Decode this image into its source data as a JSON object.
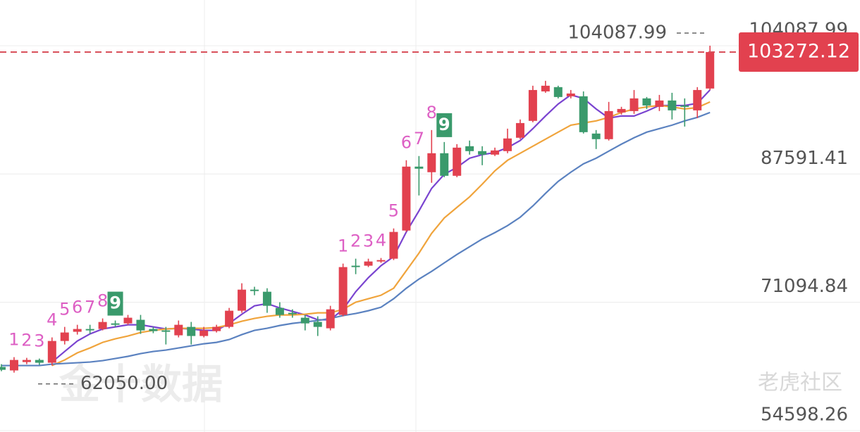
{
  "chart_data": {
    "type": "candlestick",
    "up_color": "#e2414f",
    "down_color": "#3a9a6c",
    "open": [
      62780,
      62330,
      63410,
      63680,
      63320,
      66120,
      67300,
      67660,
      67660,
      68380,
      68380,
      68840,
      67660,
      67480,
      66850,
      67930,
      66760,
      67390,
      67930,
      70010,
      72720,
      72450,
      70370,
      69740,
      69110,
      68570,
      67750,
      69470,
      75800,
      75800,
      76340,
      76700,
      80320,
      88540,
      87820,
      90260,
      87360,
      91160,
      90530,
      90080,
      90530,
      92250,
      94420,
      98210,
      98760,
      97580,
      97580,
      92790,
      92070,
      95500,
      95680,
      97310,
      96220,
      97040,
      96400,
      95770,
      98580
    ],
    "high": [
      63140,
      64040,
      63950,
      63860,
      66580,
      67930,
      68200,
      68200,
      69020,
      68750,
      69470,
      69470,
      67930,
      67930,
      68750,
      68570,
      67930,
      68200,
      70370,
      73540,
      73090,
      72900,
      71100,
      70190,
      69470,
      69290,
      70640,
      76070,
      76700,
      76700,
      76790,
      80590,
      89360,
      89900,
      93240,
      91700,
      91430,
      91890,
      91160,
      90980,
      93420,
      94600,
      98940,
      99570,
      98940,
      98390,
      98210,
      93240,
      96860,
      96230,
      98390,
      97490,
      97760,
      98030,
      97310,
      98760,
      104087.99
    ],
    "low": [
      62230,
      62050,
      63140,
      63050,
      62960,
      65670,
      66940,
      67030,
      67480,
      67930,
      68200,
      67030,
      67120,
      65670,
      66580,
      65670,
      66580,
      67210,
      67750,
      69740,
      72000,
      69740,
      69110,
      69110,
      67480,
      66760,
      67480,
      69290,
      74710,
      75620,
      76160,
      76520,
      80140,
      84830,
      86460,
      87180,
      87180,
      90080,
      88720,
      89900,
      90260,
      92070,
      94240,
      98030,
      97310,
      97310,
      92790,
      90800,
      91890,
      95230,
      95320,
      95950,
      95680,
      94600,
      93690,
      94780,
      98390
    ],
    "close": [
      62410,
      63680,
      63680,
      63320,
      66120,
      67210,
      67660,
      67480,
      68560,
      68200,
      69110,
      67480,
      67390,
      67300,
      68200,
      66760,
      67480,
      67930,
      70010,
      72720,
      72540,
      70640,
      69470,
      69560,
      68380,
      67930,
      70190,
      75620,
      75620,
      76340,
      76520,
      80140,
      88540,
      88270,
      90260,
      87360,
      90980,
      90530,
      90080,
      90620,
      92160,
      94140,
      98390,
      98940,
      97490,
      97940,
      92970,
      92070,
      95680,
      95950,
      97310,
      96400,
      97040,
      95770,
      96220,
      98390,
      103272.12
    ],
    "series": [
      {
        "color": "#7a44d0",
        "values": [
          null,
          null,
          null,
          null,
          63410,
          64770,
          66120,
          67030,
          67660,
          67930,
          68200,
          68200,
          67930,
          67660,
          67750,
          67660,
          67480,
          67480,
          68380,
          69560,
          70640,
          70920,
          70370,
          69920,
          69470,
          68840,
          68840,
          70190,
          72450,
          74260,
          75800,
          76970,
          80140,
          82850,
          85740,
          87550,
          88450,
          89620,
          90080,
          90350,
          90980,
          91890,
          93420,
          95050,
          96590,
          97760,
          97310,
          95950,
          94780,
          95050,
          95050,
          95680,
          96400,
          96400,
          96400,
          96680,
          98390
        ]
      },
      {
        "color": "#f0a43c",
        "values": [
          null,
          null,
          null,
          null,
          62960,
          63680,
          64590,
          65220,
          65940,
          66400,
          66760,
          67210,
          67480,
          67660,
          67750,
          67750,
          67750,
          67840,
          68200,
          68660,
          69020,
          69290,
          69470,
          69470,
          69560,
          69740,
          69740,
          70190,
          71100,
          71550,
          72000,
          72900,
          75160,
          77420,
          79960,
          81940,
          83300,
          84650,
          86280,
          88000,
          89350,
          90260,
          91160,
          92070,
          92970,
          93870,
          94150,
          94420,
          94870,
          95500,
          95950,
          96220,
          96400,
          96220,
          95950,
          96130,
          96860
        ]
      },
      {
        "color": "#5b82c0",
        "values": [
          62960,
          62960,
          62960,
          62960,
          63140,
          63230,
          63320,
          63410,
          63590,
          63860,
          64140,
          64500,
          64770,
          64950,
          65220,
          65490,
          65760,
          65940,
          66300,
          66940,
          67480,
          67750,
          68110,
          68380,
          68570,
          68750,
          69020,
          69380,
          69650,
          70010,
          70460,
          71550,
          72900,
          74080,
          75070,
          76160,
          77240,
          78240,
          79230,
          80050,
          80950,
          82030,
          83480,
          85100,
          86640,
          87820,
          88900,
          89620,
          90530,
          91430,
          92250,
          92970,
          93420,
          93870,
          94420,
          94870,
          95500
        ]
      }
    ],
    "td": [
      null,
      1,
      2,
      3,
      4,
      5,
      6,
      7,
      8,
      9,
      null,
      null,
      null,
      null,
      null,
      null,
      null,
      null,
      null,
      null,
      null,
      null,
      null,
      null,
      null,
      null,
      null,
      1,
      2,
      3,
      4,
      5,
      6,
      7,
      8,
      9,
      null,
      null,
      null,
      null,
      null,
      null,
      null,
      null,
      null,
      null,
      null,
      null,
      null,
      null,
      null,
      null,
      null,
      null,
      null,
      null,
      null
    ],
    "ylim": [
      54415,
      109963
    ],
    "yticks": [
      104087.99,
      87591.41,
      71094.84,
      54598.26
    ],
    "grid": true,
    "last_price": 103272.12,
    "high_label": 104087.99,
    "low_label": {
      "value": 62050,
      "label": "62050.00"
    },
    "watermarks": [
      "金十数据",
      "老虎社区"
    ]
  }
}
